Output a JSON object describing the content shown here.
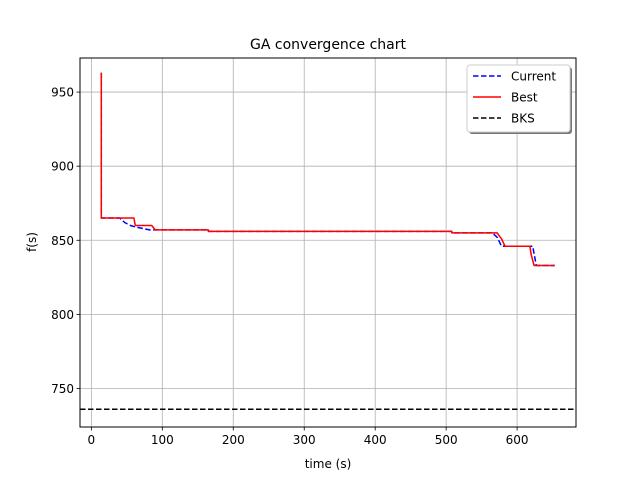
{
  "chart_data": {
    "type": "line",
    "title": "GA convergence chart",
    "xlabel": "time (s)",
    "ylabel": "f(s)",
    "xlim": [
      -16,
      683
    ],
    "ylim": [
      724,
      973
    ],
    "xticks": [
      0,
      100,
      200,
      300,
      400,
      500,
      600
    ],
    "yticks": [
      750,
      800,
      850,
      900,
      950
    ],
    "grid": true,
    "legend_position": "top-right",
    "series": [
      {
        "name": "Current",
        "style": "dashed",
        "color": "#0000ff",
        "points": [
          [
            14,
            963
          ],
          [
            14,
            865
          ],
          [
            40,
            865
          ],
          [
            47,
            862
          ],
          [
            55,
            860
          ],
          [
            62,
            859
          ],
          [
            72,
            858
          ],
          [
            82,
            857
          ],
          [
            90,
            857
          ],
          [
            165,
            857
          ],
          [
            165,
            856
          ],
          [
            400,
            856
          ],
          [
            508,
            856
          ],
          [
            508,
            855
          ],
          [
            565,
            855
          ],
          [
            572,
            852
          ],
          [
            578,
            846
          ],
          [
            622,
            846
          ],
          [
            627,
            833
          ],
          [
            653,
            833
          ]
        ]
      },
      {
        "name": "Best",
        "style": "solid",
        "color": "#ff0000",
        "points": [
          [
            14,
            963
          ],
          [
            14,
            865
          ],
          [
            60,
            865
          ],
          [
            62,
            860
          ],
          [
            85,
            860
          ],
          [
            90,
            857
          ],
          [
            165,
            857
          ],
          [
            165,
            856
          ],
          [
            400,
            856
          ],
          [
            508,
            856
          ],
          [
            508,
            855
          ],
          [
            572,
            855
          ],
          [
            578,
            851
          ],
          [
            583,
            846
          ],
          [
            618,
            846
          ],
          [
            620,
            840
          ],
          [
            624,
            833
          ],
          [
            653,
            833
          ]
        ]
      },
      {
        "name": "BKS",
        "style": "dashed",
        "color": "#000000",
        "hline": 736
      }
    ]
  }
}
